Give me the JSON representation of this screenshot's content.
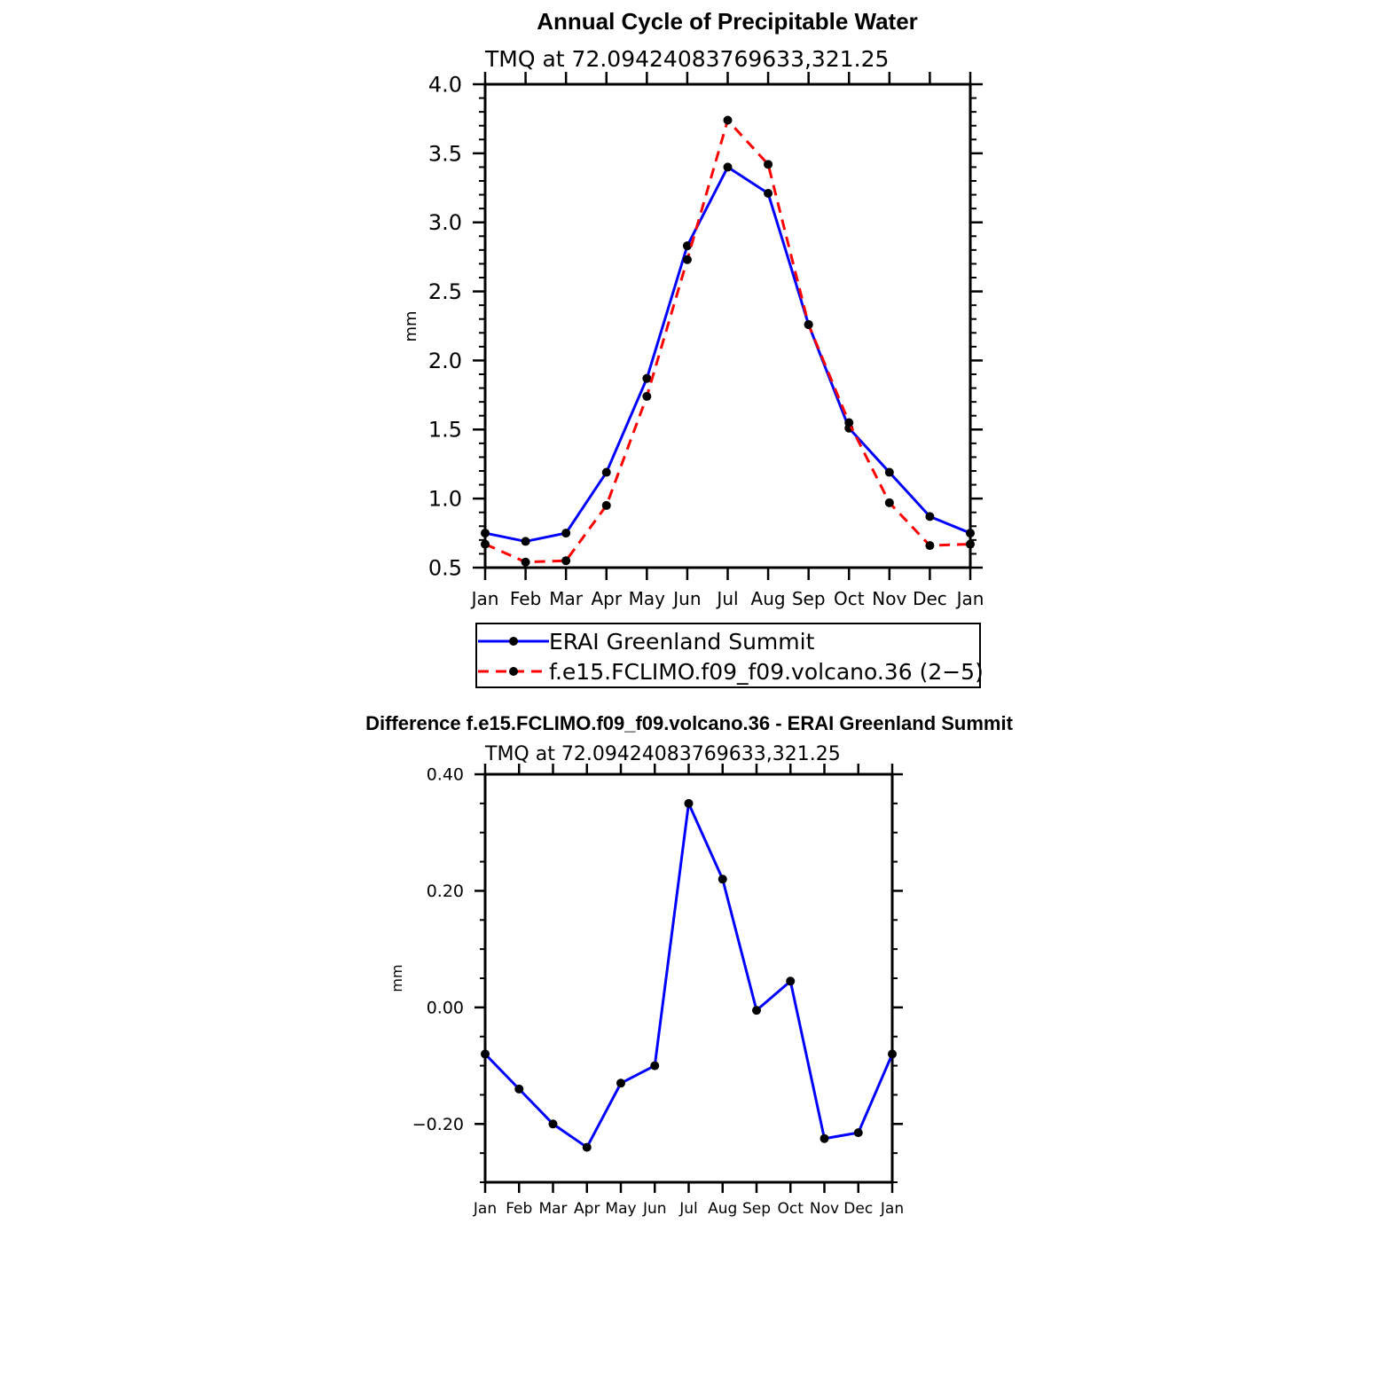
{
  "chart_data": [
    {
      "type": "line",
      "title": "Annual Cycle of Precipitable Water",
      "subtitle": "TMQ at 72.09424083769633,321.25",
      "xlabel": "",
      "ylabel": "mm",
      "categories": [
        "Jan",
        "Feb",
        "Mar",
        "Apr",
        "May",
        "Jun",
        "Jul",
        "Aug",
        "Sep",
        "Oct",
        "Nov",
        "Dec",
        "Jan"
      ],
      "ylim": [
        0.5,
        4.0
      ],
      "yticks": [
        0.5,
        1.0,
        1.5,
        2.0,
        2.5,
        3.0,
        3.5,
        4.0
      ],
      "ytick_labels": [
        "0.5",
        "1.0",
        "1.5",
        "2.0",
        "2.5",
        "3.0",
        "3.5",
        "4.0"
      ],
      "legend_position": "below",
      "series": [
        {
          "name": "ERAI Greenland Summit",
          "color": "#0000ff",
          "dash": "solid",
          "values": [
            0.75,
            0.69,
            0.75,
            1.19,
            1.87,
            2.83,
            3.4,
            3.21,
            2.26,
            1.51,
            1.19,
            0.87,
            0.75
          ]
        },
        {
          "name": "f.e15.FCLIMO.f09_f09.volcano.36 (2−5)",
          "color": "#ff0000",
          "dash": "dashed",
          "values": [
            0.67,
            0.54,
            0.55,
            0.95,
            1.74,
            2.73,
            3.74,
            3.42,
            2.26,
            1.55,
            0.97,
            0.66,
            0.67
          ]
        }
      ]
    },
    {
      "type": "line",
      "title": "Difference f.e15.FCLIMO.f09_f09.volcano.36 - ERAI Greenland Summit",
      "subtitle": "TMQ at 72.09424083769633,321.25",
      "xlabel": "",
      "ylabel": "mm",
      "categories": [
        "Jan",
        "Feb",
        "Mar",
        "Apr",
        "May",
        "Jun",
        "Jul",
        "Aug",
        "Sep",
        "Oct",
        "Nov",
        "Dec",
        "Jan"
      ],
      "ylim": [
        -0.3,
        0.4
      ],
      "yticks": [
        -0.2,
        0.0,
        0.2,
        0.4
      ],
      "ytick_labels": [
        "−0.20",
        "0.00",
        "0.20",
        "0.40"
      ],
      "series": [
        {
          "name": "Difference",
          "color": "#0000ff",
          "dash": "solid",
          "values": [
            -0.08,
            -0.14,
            -0.2,
            -0.24,
            -0.13,
            -0.1,
            0.35,
            0.22,
            -0.005,
            0.045,
            -0.225,
            -0.215,
            -0.08
          ]
        }
      ]
    }
  ]
}
